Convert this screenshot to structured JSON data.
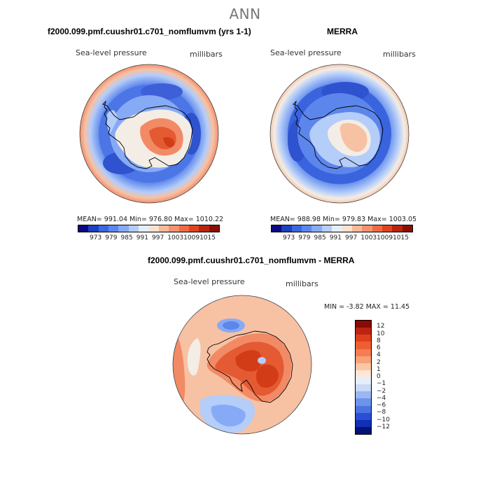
{
  "season": "ANN",
  "panels": {
    "model": {
      "title": "f2000.099.pmf.cuushr01.c701_nomflumvm (yrs 1-1)",
      "variable": "Sea-level pressure",
      "units": "millibars",
      "stats": "MEAN= 991.04   Min= 976.80   Max= 1010.22"
    },
    "obs": {
      "title": "MERRA",
      "variable": "Sea-level pressure",
      "units": "millibars",
      "stats": "MEAN= 988.98   Min= 979.83   Max= 1003.05"
    },
    "diff": {
      "title": "f2000.099.pmf.cuushr01.c701_nomflumvm - MERRA",
      "variable": "Sea-level pressure",
      "units": "millibars",
      "minmax": "MIN =   -3.82  MAX =   11.45"
    }
  },
  "colorbar_abs": {
    "colors": [
      "#0a0a80",
      "#1f3fbf",
      "#3a66e0",
      "#5b86ee",
      "#86aaf5",
      "#b4cdf9",
      "#e6eef8",
      "#fbe1d2",
      "#f7b99a",
      "#f49170",
      "#ee6a45",
      "#e0421f",
      "#b9240f",
      "#8a0e05"
    ],
    "labels": [
      "973",
      "979",
      "985",
      "991",
      "997",
      "1003",
      "1009",
      "1015"
    ]
  },
  "colorbar_diff": {
    "colors": [
      "#8a0a05",
      "#bb2410",
      "#de3f1c",
      "#ef5e33",
      "#f47e52",
      "#f8a277",
      "#fbc7a6",
      "#fde7d7",
      "#e7eef9",
      "#c9d9f6",
      "#9bb7f2",
      "#6e93ea",
      "#4b74e2",
      "#2a4fd4",
      "#1030b8",
      "#05127a"
    ],
    "labels": [
      "12",
      "10",
      "8",
      "6",
      "4",
      "2",
      "1",
      "0",
      "−1",
      "−2",
      "−4",
      "−6",
      "−8",
      "−10",
      "−12"
    ]
  },
  "map_colors": {
    "deep_low": "#3558da",
    "low": "#5d86ec",
    "mid_low": "#9bbbf5",
    "neutral": "#f3ede6",
    "warm1": "#f7c1a4",
    "warm2": "#f28a66",
    "warm3": "#e45a33",
    "warm4": "#d23c17",
    "coast": "#000000"
  }
}
